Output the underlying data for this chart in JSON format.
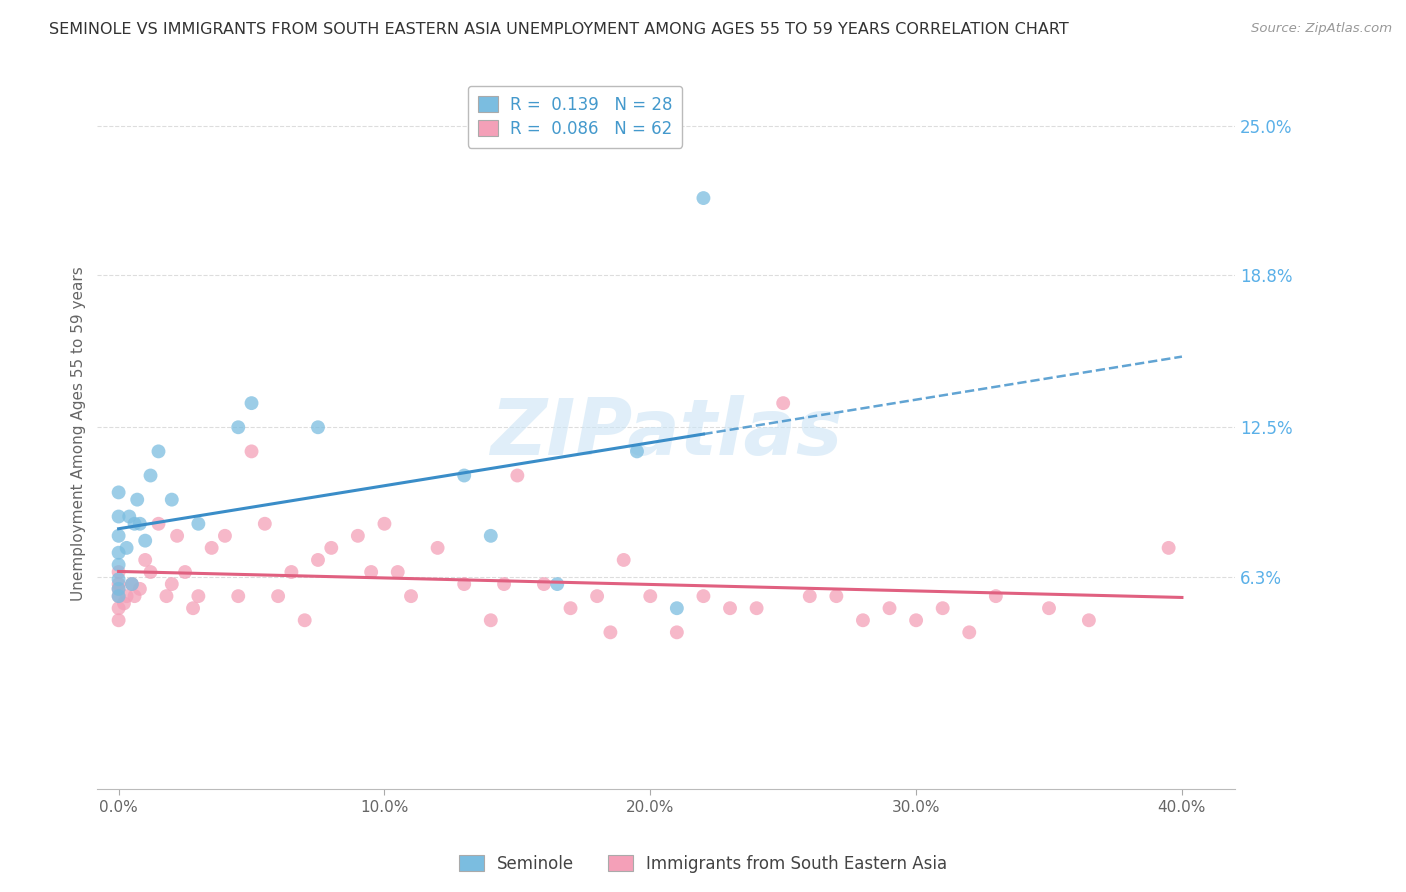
{
  "title": "SEMINOLE VS IMMIGRANTS FROM SOUTH EASTERN ASIA UNEMPLOYMENT AMONG AGES 55 TO 59 YEARS CORRELATION CHART",
  "source": "Source: ZipAtlas.com",
  "ylabel": "Unemployment Among Ages 55 to 59 years",
  "xlabel_vals": [
    0.0,
    10.0,
    20.0,
    30.0,
    40.0
  ],
  "yright_labels": [
    "25.0%",
    "18.8%",
    "12.5%",
    "6.3%"
  ],
  "yright_vals": [
    25.0,
    18.8,
    12.5,
    6.3
  ],
  "ylim": [
    -2.5,
    27.0
  ],
  "xlim": [
    -0.8,
    42.0
  ],
  "blue_color": "#7bbde0",
  "pink_color": "#f4a0b8",
  "blue_line_color": "#3a8dc8",
  "pink_line_color": "#e06080",
  "blue_R": 0.139,
  "blue_N": 28,
  "pink_R": 0.086,
  "pink_N": 62,
  "legend_label_blue": "Seminole",
  "legend_label_pink": "Immigrants from South Eastern Asia",
  "watermark": "ZIPatlas",
  "seminole_x": [
    0.0,
    0.0,
    0.0,
    0.0,
    0.0,
    0.0,
    0.0,
    0.0,
    0.3,
    0.4,
    0.5,
    0.6,
    0.7,
    0.8,
    1.0,
    1.2,
    1.5,
    2.0,
    3.0,
    4.5,
    5.0,
    7.5,
    13.0,
    14.0,
    16.5,
    19.5,
    21.0,
    22.0
  ],
  "seminole_y": [
    5.5,
    5.8,
    6.2,
    6.8,
    7.3,
    8.0,
    8.8,
    9.8,
    7.5,
    8.8,
    6.0,
    8.5,
    9.5,
    8.5,
    7.8,
    10.5,
    11.5,
    9.5,
    8.5,
    12.5,
    13.5,
    12.5,
    10.5,
    8.0,
    6.0,
    11.5,
    5.0,
    22.0
  ],
  "imm_x": [
    0.0,
    0.0,
    0.0,
    0.0,
    0.0,
    0.0,
    0.2,
    0.3,
    0.5,
    0.6,
    0.8,
    1.0,
    1.2,
    1.5,
    1.8,
    2.0,
    2.2,
    2.5,
    2.8,
    3.0,
    3.5,
    4.0,
    4.5,
    5.0,
    5.5,
    6.0,
    6.5,
    7.0,
    7.5,
    8.0,
    9.0,
    9.5,
    10.0,
    10.5,
    11.0,
    12.0,
    13.0,
    14.0,
    14.5,
    15.0,
    16.0,
    17.0,
    18.0,
    18.5,
    19.0,
    20.0,
    21.0,
    22.0,
    23.0,
    24.0,
    25.0,
    26.0,
    27.0,
    28.0,
    29.0,
    30.0,
    31.0,
    32.0,
    33.0,
    35.0,
    36.5,
    39.5
  ],
  "imm_y": [
    4.5,
    5.0,
    5.5,
    5.8,
    6.0,
    6.5,
    5.2,
    5.5,
    6.0,
    5.5,
    5.8,
    7.0,
    6.5,
    8.5,
    5.5,
    6.0,
    8.0,
    6.5,
    5.0,
    5.5,
    7.5,
    8.0,
    5.5,
    11.5,
    8.5,
    5.5,
    6.5,
    4.5,
    7.0,
    7.5,
    8.0,
    6.5,
    8.5,
    6.5,
    5.5,
    7.5,
    6.0,
    4.5,
    6.0,
    10.5,
    6.0,
    5.0,
    5.5,
    4.0,
    7.0,
    5.5,
    4.0,
    5.5,
    5.0,
    5.0,
    13.5,
    5.5,
    5.5,
    4.5,
    5.0,
    4.5,
    5.0,
    4.0,
    5.5,
    5.0,
    4.5,
    7.5
  ]
}
